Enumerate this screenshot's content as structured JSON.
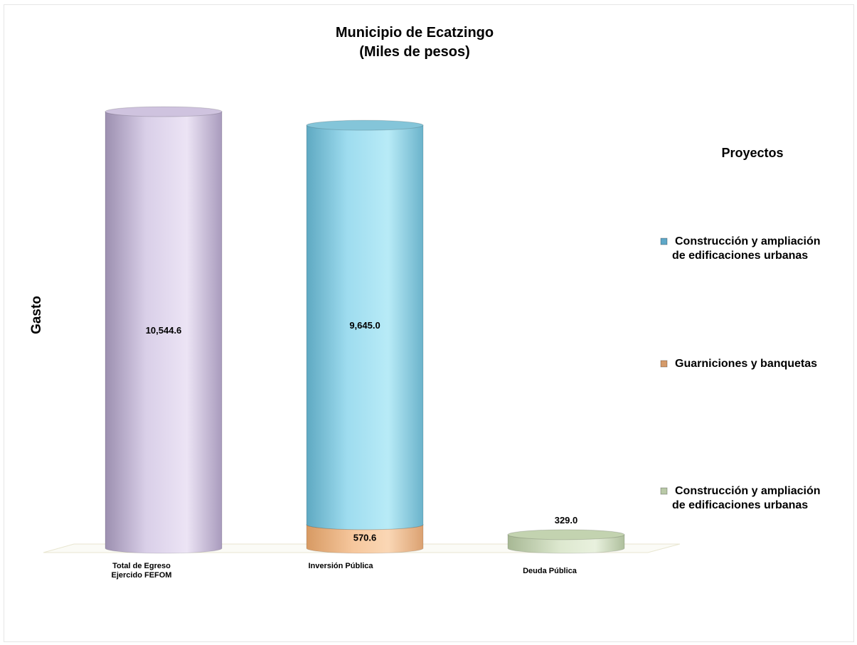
{
  "chart_data": {
    "type": "bar",
    "stacked": true,
    "title": "Municipio de Ecatzingo",
    "subtitle": "(Miles de pesos)",
    "ylabel": "Gasto",
    "xlabel": "",
    "ylim": [
      0,
      11000
    ],
    "grid": false,
    "legend_title": "Proyectos",
    "legend_position": "right",
    "categories": [
      "Total de Egreso\nEjercido FEFOM",
      "Inversión Pública",
      "Deuda Pública"
    ],
    "bars": [
      {
        "category": "Total de Egreso\nEjercido FEFOM",
        "segments": [
          {
            "value": 10544.6,
            "label": "10,544.6",
            "color": "#d8cce6"
          }
        ]
      },
      {
        "category": "Inversión Pública",
        "segments": [
          {
            "value": 570.6,
            "label": "570.6",
            "color": "#f0bf95",
            "series": "Guarniciones y banquetas"
          },
          {
            "value": 9645.0,
            "label": "9,645.0",
            "color": "#8fd4e8",
            "series": "Construcción y ampliación de edificaciones urbanas"
          }
        ]
      },
      {
        "category": "Deuda Pública",
        "segments": [
          {
            "value": 329.0,
            "label": "329.0",
            "color": "#cfdcbf",
            "series": "Construcción y ampliación de edificaciones urbanas"
          }
        ]
      }
    ],
    "legend": [
      {
        "lines": [
          "Construcción y ampliación",
          "de edificaciones urbanas"
        ],
        "color": "#5fa8c8"
      },
      {
        "lines": [
          "Guarniciones y banquetas"
        ],
        "color": "#d49a6a"
      },
      {
        "lines": [
          "Construcción y ampliación",
          "de edificaciones urbanas"
        ],
        "color": "#b9c9a7"
      }
    ]
  }
}
